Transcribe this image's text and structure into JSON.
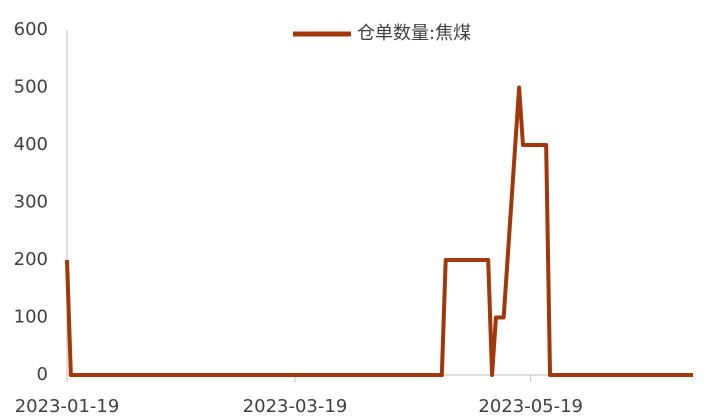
{
  "chart_data": {
    "type": "line",
    "x": [
      "2023-01-19",
      "2023-01-20",
      "2023-04-26",
      "2023-04-27",
      "2023-05-08",
      "2023-05-09",
      "2023-05-10",
      "2023-05-12",
      "2023-05-16",
      "2023-05-17",
      "2023-05-23",
      "2023-05-24",
      "2023-06-30"
    ],
    "series": [
      {
        "name": "仓单数量:焦煤",
        "color": "#a0380a",
        "values": [
          200,
          0,
          0,
          200,
          200,
          0,
          100,
          100,
          500,
          400,
          400,
          0,
          0
        ]
      }
    ],
    "xlim": [
      "2023-01-19",
      "2023-06-30"
    ],
    "xticks": [
      "2023-01-19",
      "2023-03-19",
      "2023-05-19"
    ],
    "ylim": [
      0,
      600
    ],
    "yticks": [
      0,
      100,
      200,
      300,
      400,
      500,
      600
    ],
    "legend": "top",
    "grid": false
  }
}
